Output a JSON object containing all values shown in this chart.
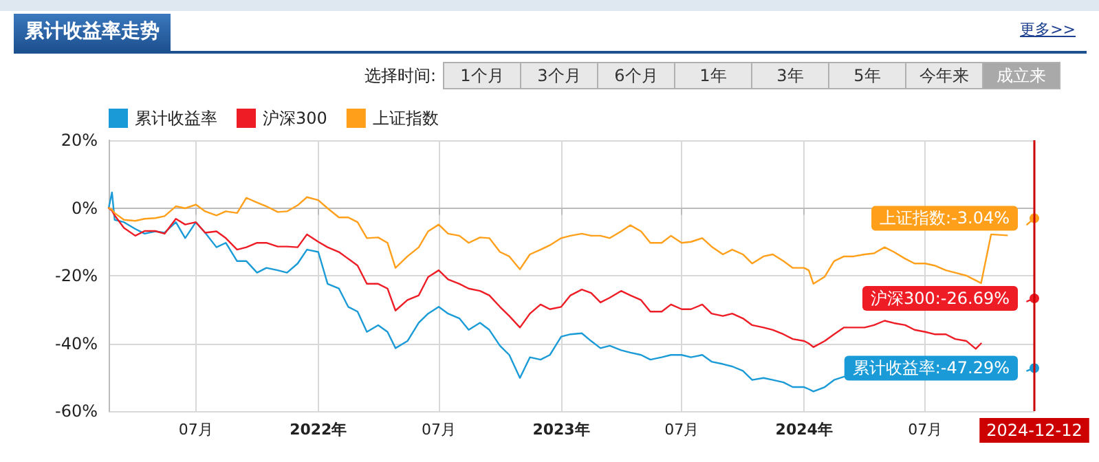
{
  "chart_data": {
    "type": "line",
    "title": "累计收益率走势",
    "annotations": [
      "更多>>",
      "选择时间:",
      "1个月",
      "3个月",
      "6个月",
      "1年",
      "3年",
      "5年",
      "今年来",
      "成立来",
      {
        "text": "累计收益率:-47.29%",
        "x": "2024-12-12",
        "y": -47.29
      },
      {
        "text": "沪深300:-26.69%",
        "x": "2024-12-12",
        "y": -26.69
      },
      {
        "text": "上证指数:-3.04%",
        "x": "2024-12-12",
        "y": -3.04
      }
    ],
    "x": [
      "2021-02-20",
      "2021-02-25",
      "2021-03-01",
      "2021-03-15",
      "2021-04-01",
      "2021-04-15",
      "2021-05-01",
      "2021-05-15",
      "2021-06-01",
      "2021-06-15",
      "2021-07-01",
      "2021-07-15",
      "2021-08-01",
      "2021-08-15",
      "2021-09-01",
      "2021-09-15",
      "2021-10-01",
      "2021-10-15",
      "2021-11-01",
      "2021-11-15",
      "2021-12-01",
      "2021-12-15",
      "2022-01-01",
      "2022-01-15",
      "2022-02-01",
      "2022-02-15",
      "2022-03-01",
      "2022-03-15",
      "2022-04-01",
      "2022-04-15",
      "2022-04-27",
      "2022-05-15",
      "2022-06-01",
      "2022-06-15",
      "2022-07-01",
      "2022-07-15",
      "2022-08-01",
      "2022-08-15",
      "2022-09-01",
      "2022-09-15",
      "2022-10-01",
      "2022-10-15",
      "2022-10-31",
      "2022-11-15",
      "2022-12-01",
      "2022-12-15",
      "2023-01-01",
      "2023-01-15",
      "2023-02-01",
      "2023-02-15",
      "2023-03-01",
      "2023-03-15",
      "2023-04-01",
      "2023-04-15",
      "2023-05-01",
      "2023-05-15",
      "2023-06-01",
      "2023-06-15",
      "2023-07-01",
      "2023-07-15",
      "2023-08-01",
      "2023-08-15",
      "2023-09-01",
      "2023-09-15",
      "2023-10-01",
      "2023-10-15",
      "2023-11-01",
      "2023-11-15",
      "2023-12-01",
      "2023-12-15",
      "2024-01-01",
      "2024-01-08",
      "2024-01-15",
      "2024-02-01",
      "2024-02-15",
      "2024-03-01",
      "2024-03-15",
      "2024-04-01",
      "2024-04-15",
      "2024-05-01",
      "2024-05-15",
      "2024-06-01",
      "2024-06-15",
      "2024-07-01",
      "2024-07-15",
      "2024-08-01",
      "2024-08-15",
      "2024-09-01",
      "2024-09-15",
      "2024-09-23",
      "2024-10-08",
      "2024-11-01",
      "2024-11-15",
      "2024-12-01",
      "2024-12-12"
    ],
    "series": [
      {
        "name": "累计收益率",
        "color": "#1a9bd7",
        "values": [
          0,
          4.6,
          -3.5,
          -4.2,
          -6.2,
          -7.6,
          -6.9,
          -7.3,
          -4.2,
          -8.9,
          -4.2,
          -7.3,
          -11.6,
          -10.3,
          -15.7,
          -15.7,
          -19.1,
          -17.7,
          -18.4,
          -19.1,
          -16.4,
          -12.3,
          -13,
          -22.4,
          -23.8,
          -29.2,
          -30.6,
          -36.6,
          -34.6,
          -36.6,
          -41.4,
          -39.3,
          -33.9,
          -31.2,
          -29.2,
          -31.2,
          -32.6,
          -36,
          -33.9,
          -36,
          -40.7,
          -43.4,
          -50.2,
          -44.1,
          -44.8,
          -43.4,
          -38,
          -37.3,
          -37,
          -39.3,
          -41.4,
          -40.7,
          -42,
          -42.7,
          -43.4,
          -44.8,
          -44.1,
          -43.4,
          -43.4,
          -44.1,
          -43.4,
          -45.4,
          -46.1,
          -46.8,
          -48.1,
          -50.8,
          -50.2,
          -50.8,
          -51.5,
          -52.9,
          -52.9,
          -53.5,
          -54.2,
          -52.9,
          -50.8,
          -49.8,
          null,
          null,
          null,
          null,
          null,
          null,
          null,
          null,
          null,
          null,
          null,
          null,
          null,
          null,
          null,
          null,
          null,
          -48.1,
          -47.29
        ]
      },
      {
        "name": "沪深300",
        "color": "#ee1c25",
        "values": [
          0,
          -0.8,
          -2.2,
          -5.9,
          -8.2,
          -6.8,
          -6.8,
          -7.6,
          -3.2,
          -4.9,
          -4.2,
          -7.3,
          -6.9,
          -8.9,
          -12.3,
          -11.6,
          -10.3,
          -10.3,
          -11.4,
          -11.4,
          -11.6,
          -7.8,
          -10,
          -11.6,
          -13,
          -15,
          -17,
          -22.4,
          -22.4,
          -23.8,
          -30.3,
          -27.2,
          -25.8,
          -20.4,
          -18.4,
          -21.1,
          -22.4,
          -23.8,
          -24.5,
          -25.8,
          -29.2,
          -31.9,
          -35.3,
          -31.2,
          -28.5,
          -29.9,
          -29.2,
          -25.8,
          -24.1,
          -25.1,
          -27.9,
          -26.5,
          -24.5,
          -25.8,
          -27.2,
          -30.6,
          -30.6,
          -28.5,
          -29.9,
          -29.9,
          -28.5,
          -31.2,
          -31.9,
          -31.2,
          -32.6,
          -34.6,
          -35.3,
          -36,
          -37.3,
          -38.7,
          -39.3,
          -40,
          -41.1,
          -39.3,
          -37.3,
          -35.3,
          -35.3,
          -35.3,
          -34.6,
          -33.3,
          -34,
          -34.6,
          -36,
          -36.6,
          -37.3,
          -37.3,
          -38.7,
          -39.3,
          -41.6,
          -40,
          null,
          null,
          null,
          -27.6,
          -26.69
        ]
      },
      {
        "name": "上证指数",
        "color": "#ff9f1a",
        "values": [
          0,
          -0.5,
          -1.5,
          -3.5,
          -3.8,
          -3.2,
          -3,
          -2.4,
          0.5,
          -0.1,
          1,
          -1,
          -2.2,
          -1,
          -1.5,
          3,
          1.6,
          0.5,
          -1.2,
          -1,
          0.8,
          3.2,
          2.3,
          -0.1,
          -2.8,
          -2.8,
          -4.2,
          -8.9,
          -8.7,
          -10.3,
          -17.7,
          -14.3,
          -11.6,
          -6.9,
          -4.9,
          -7.6,
          -8.2,
          -10.3,
          -8.7,
          -8.9,
          -13,
          -14.3,
          -18.1,
          -13.7,
          -12.3,
          -11,
          -8.9,
          -8.2,
          -7.6,
          -8.2,
          -8.2,
          -8.9,
          -6.9,
          -5.1,
          -6.9,
          -10.3,
          -10.3,
          -8.2,
          -10.3,
          -10,
          -8.9,
          -11.4,
          -13.7,
          -12.3,
          -13.7,
          -16.4,
          -14.3,
          -13.7,
          -15.7,
          -17.7,
          -17.7,
          -18.4,
          -22.4,
          -20.3,
          -15.7,
          -14.3,
          -14.3,
          -13.7,
          -13.4,
          -11.6,
          -13,
          -15,
          -16.4,
          -16.4,
          -17,
          -18.4,
          -19.1,
          -20,
          -21.4,
          -22.2,
          -7.8,
          -8.1,
          null,
          -4.9,
          -3.04
        ]
      }
    ],
    "xlim": [
      "2021-02-20",
      "2024-12-12"
    ],
    "xticks": [
      {
        "value": "2021-07-01",
        "label": "07月"
      },
      {
        "value": "2022-01-01",
        "label": "2022年"
      },
      {
        "value": "2022-07-01",
        "label": "07月"
      },
      {
        "value": "2023-01-01",
        "label": "2023年"
      },
      {
        "value": "2023-07-01",
        "label": "07月"
      },
      {
        "value": "2024-01-01",
        "label": "2024年"
      },
      {
        "value": "2024-07-01",
        "label": "07月"
      }
    ],
    "ylim": [
      -60,
      20
    ],
    "yticks": [
      {
        "value": -60,
        "label": "-60%"
      },
      {
        "value": -40,
        "label": "-40%"
      },
      {
        "value": -20,
        "label": "-20%"
      },
      {
        "value": 0,
        "label": "0%"
      },
      {
        "value": 20,
        "label": "20%"
      }
    ],
    "ref_lines": [
      {
        "axis": "x",
        "value": "2024-12-12",
        "label": "2024-12-12",
        "color": "#cc0000"
      }
    ],
    "grid": true,
    "legend": "top left",
    "line_style": "solid"
  }
}
